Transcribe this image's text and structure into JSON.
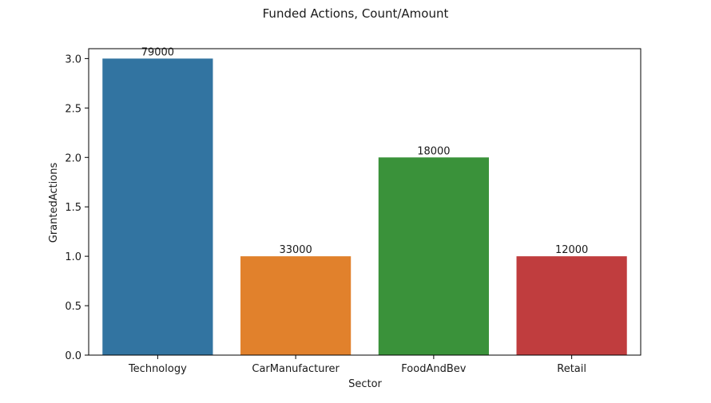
{
  "chart_data": {
    "type": "bar",
    "title": "Funded Actions, Count/Amount",
    "xlabel": "Sector",
    "ylabel": "GrantedActions",
    "categories": [
      "Technology",
      "CarManufacturer",
      "FoodAndBev",
      "Retail"
    ],
    "values": [
      3,
      1,
      2,
      1
    ],
    "bar_labels": [
      "79000",
      "33000",
      "18000",
      "12000"
    ],
    "colors": [
      "#3274a1",
      "#e1812c",
      "#3a923a",
      "#c03d3e"
    ],
    "ylim": [
      0,
      3.1
    ],
    "yticks": [
      "0.0",
      "0.5",
      "1.0",
      "1.5",
      "2.0",
      "2.5",
      "3.0"
    ],
    "ytick_values": [
      0,
      0.5,
      1.0,
      1.5,
      2.0,
      2.5,
      3.0
    ],
    "grid": false,
    "legend": "none"
  }
}
